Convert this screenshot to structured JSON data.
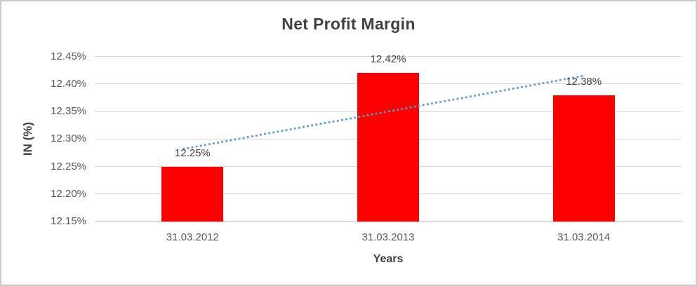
{
  "chart_data": {
    "type": "bar",
    "title": "Net Profit Margin",
    "xlabel": "Years",
    "ylabel": "IN (%)",
    "categories": [
      "31.03.2012",
      "31.03.2013",
      "31.03.2014"
    ],
    "series": [
      {
        "name": "Net Profit Margin",
        "values": [
          12.25,
          12.42,
          12.38
        ]
      }
    ],
    "data_labels": [
      "12.25%",
      "12.42%",
      "12.38%"
    ],
    "ylim": [
      12.15,
      12.45
    ],
    "ytick_labels": [
      "12.15%",
      "12.20%",
      "12.25%",
      "12.30%",
      "12.35%",
      "12.40%",
      "12.45%"
    ],
    "grid": true,
    "legend": false,
    "bar_color": "#FF0000",
    "trendline": {
      "type": "linear",
      "style": "dotted",
      "color": "#5B9BD5"
    }
  },
  "colors": {
    "bar": "#FF0000",
    "trendline": "#5B9BD5",
    "gridline": "#D9D9D9",
    "axis_line": "#BFBFBF",
    "tick_text": "#595959",
    "label_text": "#404040",
    "title_text": "#404040",
    "border": "#CBCBCB"
  }
}
